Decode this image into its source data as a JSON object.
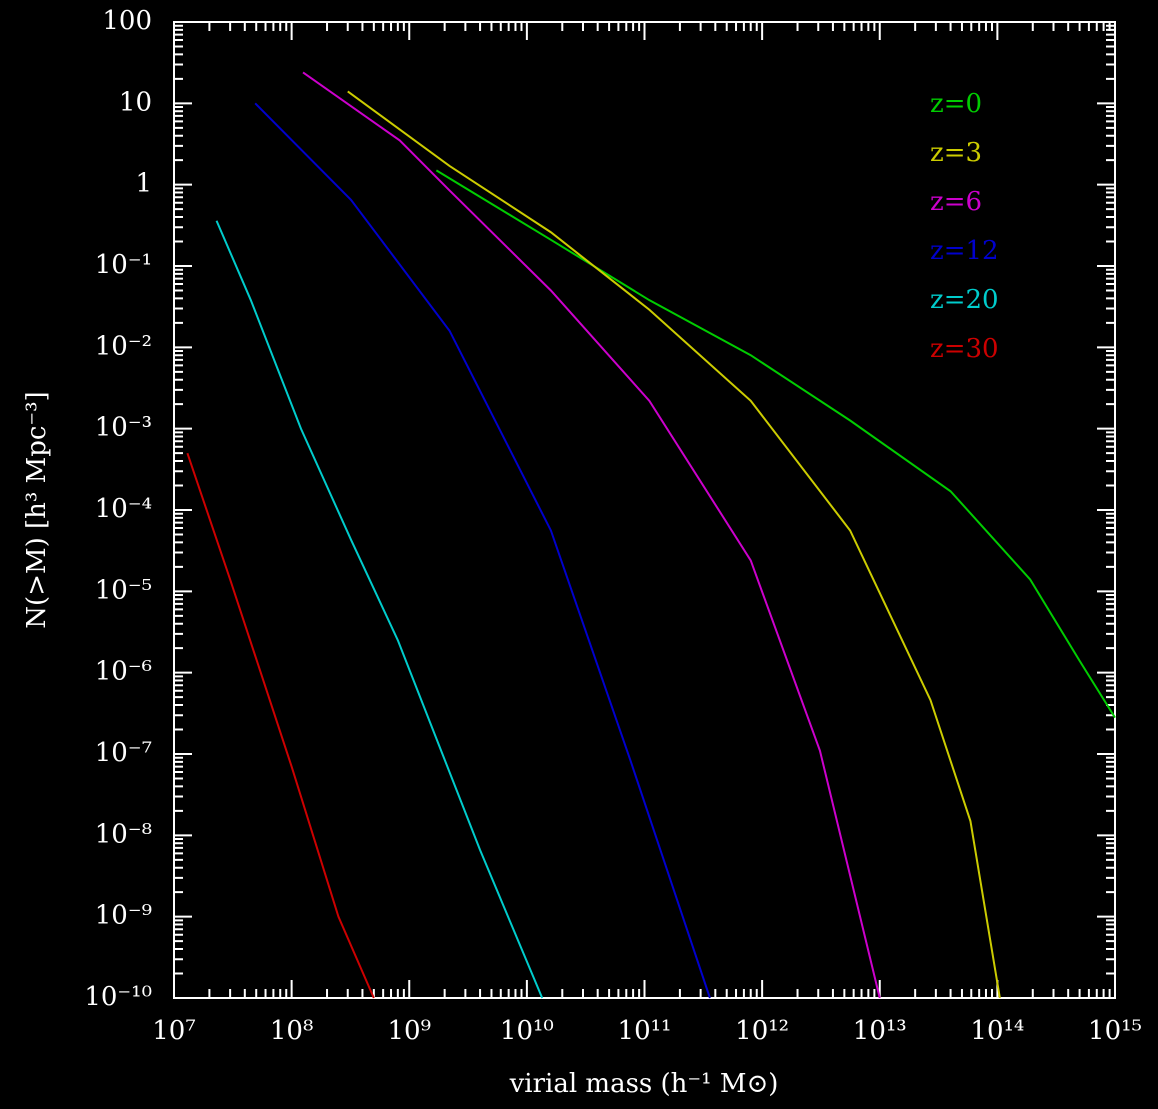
{
  "chart_data": {
    "type": "line",
    "xlabel": "virial mass (h⁻¹ M⊙)",
    "ylabel": "N(>M) [h³ Mpc⁻³]",
    "xscale": "log",
    "yscale": "log",
    "xlim": [
      10000000.0,
      1000000000000000.0
    ],
    "ylim": [
      1e-10,
      100
    ],
    "xticks": [
      {
        "value": 10000000.0,
        "label": "10⁷"
      },
      {
        "value": 100000000.0,
        "label": "10⁸"
      },
      {
        "value": 1000000000.0,
        "label": "10⁹"
      },
      {
        "value": 10000000000.0,
        "label": "10¹⁰"
      },
      {
        "value": 100000000000.0,
        "label": "10¹¹"
      },
      {
        "value": 1000000000000.0,
        "label": "10¹²"
      },
      {
        "value": 10000000000000.0,
        "label": "10¹³"
      },
      {
        "value": 100000000000000.0,
        "label": "10¹⁴"
      },
      {
        "value": 1000000000000000.0,
        "label": "10¹⁵"
      }
    ],
    "yticks": [
      {
        "value": 1e-10,
        "label": "10⁻¹⁰"
      },
      {
        "value": 1e-09,
        "label": "10⁻⁹"
      },
      {
        "value": 1e-08,
        "label": "10⁻⁸"
      },
      {
        "value": 1e-07,
        "label": "10⁻⁷"
      },
      {
        "value": 1e-06,
        "label": "10⁻⁶"
      },
      {
        "value": 1e-05,
        "label": "10⁻⁵"
      },
      {
        "value": 0.0001,
        "label": "10⁻⁴"
      },
      {
        "value": 0.001,
        "label": "10⁻³"
      },
      {
        "value": 0.01,
        "label": "10⁻²"
      },
      {
        "value": 0.1,
        "label": "10⁻¹"
      },
      1,
      10,
      100
    ],
    "grid": false,
    "legend": "upper right",
    "series": [
      {
        "name": "z=0",
        "color": "#00cc00",
        "x": [
          1700000000.0,
          16000000000.0,
          110000000000.0,
          800000000000.0,
          5600000000000.0,
          40000000000000.0,
          190000000000000.0,
          500000000000000.0,
          1000000000000000.0
        ],
        "values": [
          1.5,
          0.21,
          0.038,
          0.008,
          0.00126,
          0.00017,
          1.4e-05,
          1.4e-06,
          2.8e-07
        ]
      },
      {
        "name": "z=3",
        "color": "#cccc00",
        "x": [
          300000000.0,
          2200000000.0,
          16000000000.0,
          110000000000.0,
          800000000000.0,
          5600000000000.0,
          27000000000000.0,
          59000000000000.0,
          105000000000000.0
        ],
        "values": [
          14,
          1.7,
          0.26,
          0.029,
          0.0022,
          5.6e-05,
          4.6e-07,
          1.5e-08,
          1e-10
        ]
      },
      {
        "name": "z=6",
        "color": "#cc00cc",
        "x": [
          125000000.0,
          830000000.0,
          2200000000.0,
          16000000000.0,
          110000000000.0,
          800000000000.0,
          3100000000000.0,
          10000000000000.0
        ],
        "values": [
          24,
          3.5,
          0.85,
          0.05,
          0.0022,
          2.4e-05,
          1.1e-07,
          1e-10
        ]
      },
      {
        "name": "z=12",
        "color": "#0000cc",
        "x": [
          49000000.0,
          320000000.0,
          2200000000.0,
          16000000000.0,
          76000000000.0,
          360000000000.0
        ],
        "values": [
          10,
          0.65,
          0.016,
          5.6e-05,
          8.3e-08,
          1e-10
        ]
      },
      {
        "name": "z=20",
        "color": "#00cccc",
        "x": [
          23000000.0,
          45000000.0,
          120000000.0,
          320000000.0,
          800000000.0,
          4000000000.0,
          13500000000.0
        ],
        "values": [
          0.36,
          0.038,
          0.001,
          4.3e-05,
          2.5e-06,
          6.6e-09,
          1e-10
        ]
      },
      {
        "name": "z=30",
        "color": "#cc0000",
        "x": [
          13000000.0,
          30000000.0,
          100000000.0,
          250000000.0,
          500000000.0
        ],
        "values": [
          0.0005,
          1.4e-05,
          7e-08,
          1e-09,
          1e-10
        ]
      }
    ]
  }
}
